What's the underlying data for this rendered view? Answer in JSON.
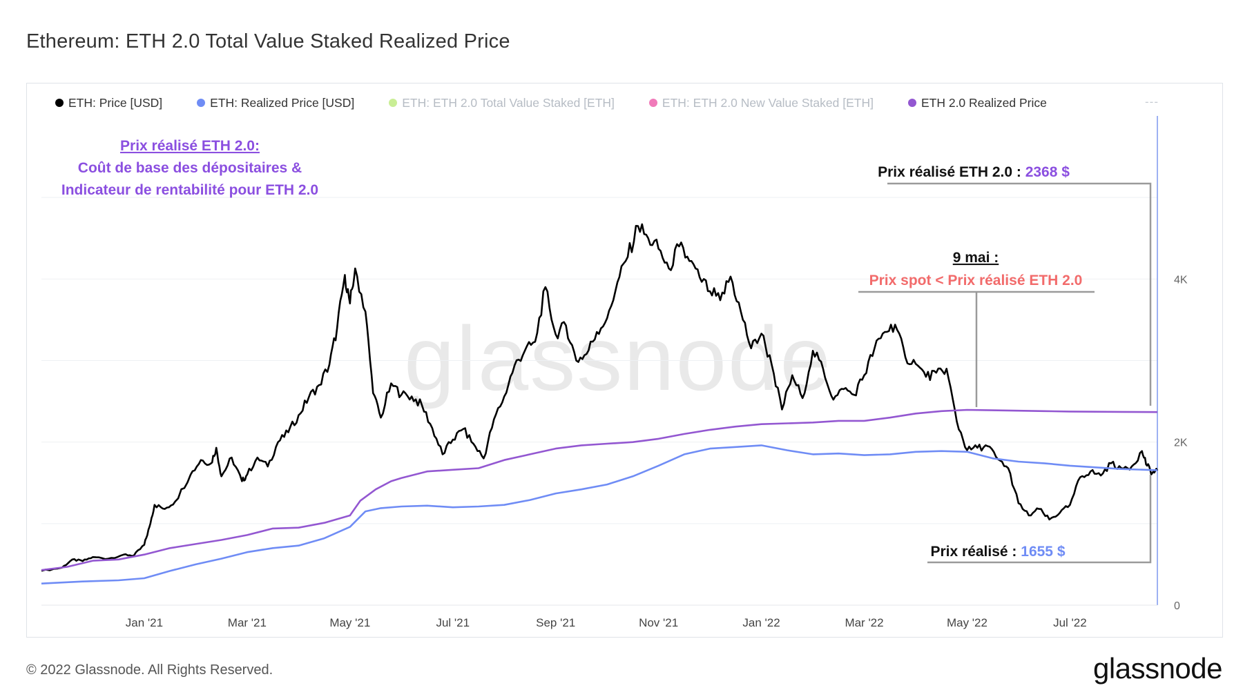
{
  "title": "Ethereum: ETH 2.0 Total Value Staked Realized Price",
  "footer": {
    "copyright": "© 2022 Glassnode. All Rights Reserved.",
    "logo": "glassnode"
  },
  "watermark": "glassnode",
  "legend": {
    "items": [
      {
        "label": "ETH: Price [USD]",
        "color": "#000000",
        "active": true
      },
      {
        "label": "ETH: Realized Price [USD]",
        "color": "#6f8cf5",
        "active": true
      },
      {
        "label": "ETH: ETH 2.0 Total Value Staked [ETH]",
        "color": "#9be22d",
        "active": false
      },
      {
        "label": "ETH: ETH 2.0 New Value Staked [ETH]",
        "color": "#e8168a",
        "active": false
      },
      {
        "label": "ETH 2.0 Realized Price",
        "color": "#9357d1",
        "active": true
      }
    ],
    "more": "---"
  },
  "annotations": {
    "top_left": {
      "line1": "Prix réalisé ETH 2.0:",
      "line2": "Coût de base des dépositaires &",
      "line3": "Indicateur de rentabilité pour ETH 2.0",
      "color": "#8b4fe0"
    },
    "eth2_label": "Prix réalisé ETH 2.0 :",
    "eth2_value": "2368 $",
    "may9_title": "9 mai :",
    "may9_text": "Prix spot < Prix réalisé ETH 2.0",
    "may9_color": "#f26b6b",
    "realized_label": "Prix réalisé :",
    "realized_value": "1655 $",
    "realized_color": "#6f8cf5"
  },
  "chart_data": {
    "type": "line",
    "title": "Ethereum: ETH 2.0 Total Value Staked Realized Price",
    "x_range_months": [
      -1.0,
      20.7
    ],
    "x_ticks": [
      {
        "label": "Jan '21",
        "month": 1
      },
      {
        "label": "Mar '21",
        "month": 3
      },
      {
        "label": "May '21",
        "month": 5
      },
      {
        "label": "Jul '21",
        "month": 7
      },
      {
        "label": "Sep '21",
        "month": 9
      },
      {
        "label": "Nov '21",
        "month": 11
      },
      {
        "label": "Jan '22",
        "month": 13
      },
      {
        "label": "Mar '22",
        "month": 15
      },
      {
        "label": "May '22",
        "month": 17
      },
      {
        "label": "Jul '22",
        "month": 19
      }
    ],
    "y_ticks": [
      {
        "label": "0",
        "value": 0
      },
      {
        "label": "2K",
        "value": 2000
      },
      {
        "label": "4K",
        "value": 4000
      }
    ],
    "ylim": [
      0,
      6000
    ],
    "series": [
      {
        "name": "ETH: Price [USD]",
        "color": "#000000",
        "points": [
          [
            -1.0,
            420
          ],
          [
            -0.6,
            460
          ],
          [
            -0.4,
            560
          ],
          [
            -0.2,
            540
          ],
          [
            0.0,
            590
          ],
          [
            0.3,
            570
          ],
          [
            0.6,
            620
          ],
          [
            0.8,
            610
          ],
          [
            1.0,
            740
          ],
          [
            1.1,
            960
          ],
          [
            1.2,
            1230
          ],
          [
            1.4,
            1180
          ],
          [
            1.6,
            1270
          ],
          [
            1.9,
            1600
          ],
          [
            2.1,
            1780
          ],
          [
            2.3,
            1740
          ],
          [
            2.4,
            1930
          ],
          [
            2.5,
            1580
          ],
          [
            2.7,
            1810
          ],
          [
            2.9,
            1520
          ],
          [
            3.0,
            1600
          ],
          [
            3.2,
            1810
          ],
          [
            3.4,
            1700
          ],
          [
            3.6,
            2000
          ],
          [
            3.8,
            2120
          ],
          [
            4.0,
            2330
          ],
          [
            4.2,
            2550
          ],
          [
            4.4,
            2700
          ],
          [
            4.6,
            2950
          ],
          [
            4.75,
            3400
          ],
          [
            4.9,
            4050
          ],
          [
            5.0,
            3700
          ],
          [
            5.1,
            4130
          ],
          [
            5.3,
            3600
          ],
          [
            5.45,
            2600
          ],
          [
            5.6,
            2300
          ],
          [
            5.8,
            2720
          ],
          [
            6.0,
            2580
          ],
          [
            6.2,
            2560
          ],
          [
            6.4,
            2450
          ],
          [
            6.6,
            2170
          ],
          [
            6.8,
            1850
          ],
          [
            7.0,
            2030
          ],
          [
            7.2,
            2160
          ],
          [
            7.4,
            1980
          ],
          [
            7.6,
            1800
          ],
          [
            7.8,
            2280
          ],
          [
            8.0,
            2560
          ],
          [
            8.2,
            2940
          ],
          [
            8.4,
            3120
          ],
          [
            8.6,
            3230
          ],
          [
            8.8,
            3900
          ],
          [
            9.0,
            3320
          ],
          [
            9.2,
            3430
          ],
          [
            9.4,
            3000
          ],
          [
            9.6,
            3080
          ],
          [
            9.8,
            3350
          ],
          [
            10.0,
            3520
          ],
          [
            10.2,
            3960
          ],
          [
            10.4,
            4270
          ],
          [
            10.6,
            4650
          ],
          [
            10.8,
            4500
          ],
          [
            11.0,
            4370
          ],
          [
            11.2,
            4130
          ],
          [
            11.4,
            4400
          ],
          [
            11.6,
            4220
          ],
          [
            11.8,
            4020
          ],
          [
            12.0,
            3850
          ],
          [
            12.2,
            3740
          ],
          [
            12.4,
            4030
          ],
          [
            12.6,
            3600
          ],
          [
            12.8,
            3150
          ],
          [
            13.0,
            3330
          ],
          [
            13.2,
            2950
          ],
          [
            13.4,
            2400
          ],
          [
            13.6,
            2820
          ],
          [
            13.8,
            2540
          ],
          [
            14.0,
            3120
          ],
          [
            14.2,
            2900
          ],
          [
            14.4,
            2520
          ],
          [
            14.6,
            2650
          ],
          [
            14.8,
            2580
          ],
          [
            15.0,
            2820
          ],
          [
            15.2,
            3150
          ],
          [
            15.4,
            3350
          ],
          [
            15.6,
            3440
          ],
          [
            15.8,
            3040
          ],
          [
            16.0,
            2960
          ],
          [
            16.2,
            2800
          ],
          [
            16.4,
            2850
          ],
          [
            16.6,
            2900
          ],
          [
            16.8,
            2250
          ],
          [
            17.0,
            1900
          ],
          [
            17.2,
            1930
          ],
          [
            17.4,
            1950
          ],
          [
            17.6,
            1790
          ],
          [
            17.8,
            1680
          ],
          [
            18.0,
            1250
          ],
          [
            18.2,
            1100
          ],
          [
            18.4,
            1180
          ],
          [
            18.6,
            1050
          ],
          [
            18.8,
            1130
          ],
          [
            19.0,
            1230
          ],
          [
            19.2,
            1570
          ],
          [
            19.4,
            1640
          ],
          [
            19.6,
            1590
          ],
          [
            19.8,
            1740
          ],
          [
            20.0,
            1680
          ],
          [
            20.2,
            1700
          ],
          [
            20.4,
            1890
          ],
          [
            20.5,
            1710
          ],
          [
            20.6,
            1620
          ],
          [
            20.7,
            1650
          ]
        ]
      },
      {
        "name": "ETH: Realized Price [USD]",
        "color": "#6f8cf5",
        "points": [
          [
            -1.0,
            265
          ],
          [
            -0.2,
            290
          ],
          [
            0.5,
            305
          ],
          [
            1.0,
            330
          ],
          [
            1.5,
            420
          ],
          [
            2.0,
            500
          ],
          [
            2.5,
            570
          ],
          [
            3.0,
            650
          ],
          [
            3.5,
            700
          ],
          [
            4.0,
            730
          ],
          [
            4.5,
            820
          ],
          [
            5.0,
            960
          ],
          [
            5.3,
            1150
          ],
          [
            5.6,
            1190
          ],
          [
            6.0,
            1210
          ],
          [
            6.5,
            1220
          ],
          [
            7.0,
            1200
          ],
          [
            7.5,
            1210
          ],
          [
            8.0,
            1230
          ],
          [
            8.5,
            1290
          ],
          [
            9.0,
            1370
          ],
          [
            9.5,
            1420
          ],
          [
            10.0,
            1480
          ],
          [
            10.5,
            1580
          ],
          [
            11.0,
            1710
          ],
          [
            11.5,
            1850
          ],
          [
            12.0,
            1920
          ],
          [
            12.5,
            1940
          ],
          [
            13.0,
            1960
          ],
          [
            13.5,
            1900
          ],
          [
            14.0,
            1850
          ],
          [
            14.5,
            1860
          ],
          [
            15.0,
            1840
          ],
          [
            15.5,
            1850
          ],
          [
            16.0,
            1880
          ],
          [
            16.5,
            1890
          ],
          [
            17.0,
            1880
          ],
          [
            17.5,
            1800
          ],
          [
            18.0,
            1760
          ],
          [
            18.5,
            1740
          ],
          [
            19.0,
            1710
          ],
          [
            19.5,
            1690
          ],
          [
            20.0,
            1670
          ],
          [
            20.7,
            1655
          ]
        ]
      },
      {
        "name": "ETH 2.0 Realized Price",
        "color": "#9357d1",
        "points": [
          [
            -1.0,
            430
          ],
          [
            -0.5,
            470
          ],
          [
            0.0,
            545
          ],
          [
            0.5,
            560
          ],
          [
            1.0,
            620
          ],
          [
            1.5,
            700
          ],
          [
            2.0,
            750
          ],
          [
            2.5,
            800
          ],
          [
            3.0,
            860
          ],
          [
            3.5,
            940
          ],
          [
            4.0,
            950
          ],
          [
            4.5,
            1010
          ],
          [
            5.0,
            1100
          ],
          [
            5.2,
            1280
          ],
          [
            5.5,
            1420
          ],
          [
            5.8,
            1520
          ],
          [
            6.0,
            1560
          ],
          [
            6.5,
            1640
          ],
          [
            7.0,
            1660
          ],
          [
            7.5,
            1680
          ],
          [
            8.0,
            1780
          ],
          [
            8.5,
            1850
          ],
          [
            9.0,
            1920
          ],
          [
            9.5,
            1960
          ],
          [
            10.0,
            1980
          ],
          [
            10.5,
            2000
          ],
          [
            11.0,
            2040
          ],
          [
            11.5,
            2100
          ],
          [
            12.0,
            2150
          ],
          [
            12.5,
            2190
          ],
          [
            13.0,
            2220
          ],
          [
            13.5,
            2230
          ],
          [
            14.0,
            2240
          ],
          [
            14.5,
            2260
          ],
          [
            15.0,
            2260
          ],
          [
            15.5,
            2300
          ],
          [
            16.0,
            2350
          ],
          [
            16.5,
            2380
          ],
          [
            17.0,
            2395
          ],
          [
            17.5,
            2390
          ],
          [
            18.0,
            2385
          ],
          [
            18.5,
            2380
          ],
          [
            19.0,
            2375
          ],
          [
            19.5,
            2372
          ],
          [
            20.0,
            2370
          ],
          [
            20.7,
            2368
          ]
        ]
      }
    ]
  }
}
